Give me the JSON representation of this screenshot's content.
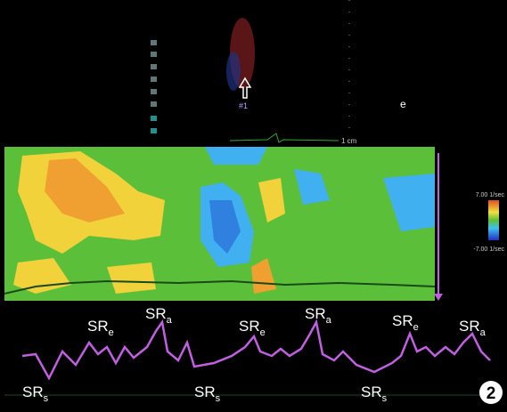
{
  "header": {
    "marker": "#1",
    "depth_label": "1 cm",
    "view_label": "e"
  },
  "color_scale": {
    "max_label": "7.00 1/sec",
    "min_label": "-7.00 1/sec"
  },
  "annotations": [
    {
      "text": "SR",
      "sub": "s"
    },
    {
      "text": "SR",
      "sub": "e"
    },
    {
      "text": "SR",
      "sub": "a"
    },
    {
      "text": "SR",
      "sub": "s"
    },
    {
      "text": "SR",
      "sub": "e"
    },
    {
      "text": "SR",
      "sub": "a"
    },
    {
      "text": "SR",
      "sub": "s"
    },
    {
      "text": "SR",
      "sub": "e"
    },
    {
      "text": "SR",
      "sub": "a"
    }
  ],
  "panel_number": "2"
}
